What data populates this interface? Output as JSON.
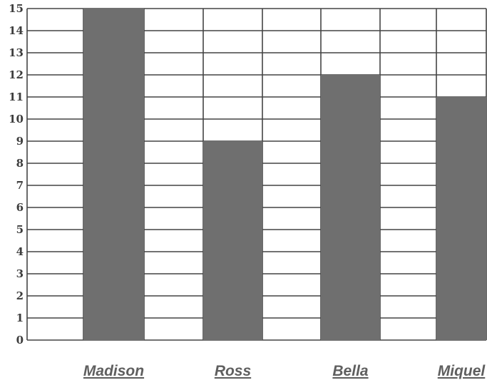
{
  "chart_data": {
    "type": "bar",
    "categories": [
      "Madison",
      "Ross",
      "Bella",
      "Miquel"
    ],
    "values": [
      15,
      9,
      12,
      11
    ],
    "title": "",
    "xlabel": "",
    "ylabel": "",
    "ylim": [
      0,
      15
    ],
    "yticks": [
      "0",
      "1",
      "2",
      "3",
      "4",
      "5",
      "6",
      "7",
      "8",
      "9",
      "10",
      "11",
      "12",
      "13",
      "14",
      "15"
    ],
    "grid": true,
    "bar_color": "#6f6f6f",
    "grid_color": "#444444"
  }
}
